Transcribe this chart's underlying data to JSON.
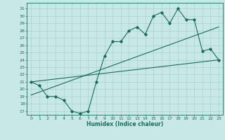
{
  "title": "",
  "xlabel": "Humidex (Indice chaleur)",
  "ylabel": "",
  "background_color": "#c8e8e8",
  "grid_color": "#a8d0d0",
  "line_color": "#1a6b5a",
  "xlim": [
    -0.5,
    23.5
  ],
  "ylim": [
    16.5,
    31.8
  ],
  "yticks": [
    17,
    18,
    19,
    20,
    21,
    22,
    23,
    24,
    25,
    26,
    27,
    28,
    29,
    30,
    31
  ],
  "xticks": [
    0,
    1,
    2,
    3,
    4,
    5,
    6,
    7,
    8,
    9,
    10,
    11,
    12,
    13,
    14,
    15,
    16,
    17,
    18,
    19,
    20,
    21,
    22,
    23
  ],
  "main_x": [
    0,
    1,
    2,
    3,
    4,
    5,
    6,
    7,
    8,
    9,
    10,
    11,
    12,
    13,
    14,
    15,
    16,
    17,
    18,
    19,
    20,
    21,
    22,
    23
  ],
  "main_y": [
    21.0,
    20.5,
    19.0,
    19.0,
    18.5,
    17.0,
    16.7,
    17.0,
    21.0,
    24.5,
    26.5,
    26.5,
    28.0,
    28.5,
    27.5,
    30.0,
    30.5,
    29.0,
    31.0,
    29.5,
    29.5,
    25.2,
    25.5,
    24.0
  ],
  "trend1_x": [
    0,
    23
  ],
  "trend1_y": [
    21.0,
    24.0
  ],
  "trend2_x": [
    0,
    23
  ],
  "trend2_y": [
    19.2,
    28.5
  ]
}
